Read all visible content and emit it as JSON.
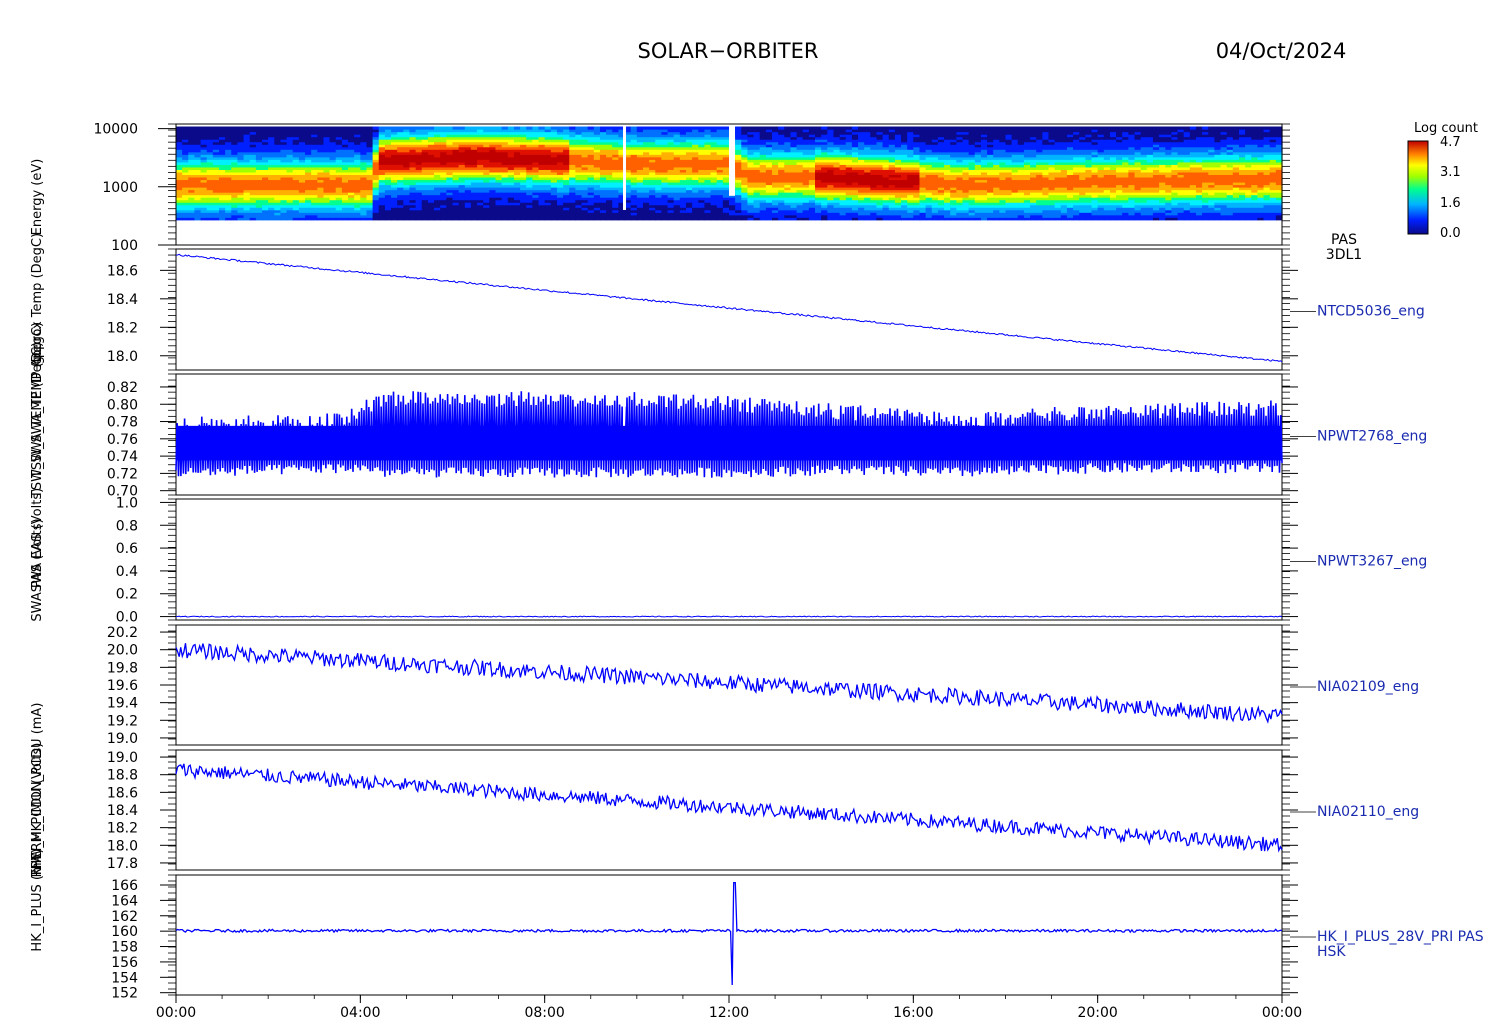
{
  "header": {
    "title": "SOLAR−ORBITER",
    "date": "04/Oct/2024"
  },
  "colorbar": {
    "title": "Log count",
    "ticks": [
      "4.7",
      "3.1",
      "1.6",
      "0.0"
    ]
  },
  "left_labels": [
    "Energy (eV)",
    "Approx Temp (DegC)",
    "TSW_SWA_TEMP (DegC)",
    "TSW_SWA_TEMP (DegC)",
    "SWA EAS (Volts)",
    "SWA PAS (Volts)",
    "RPW_HK_IMON_PCDU (mA)",
    "THERM_PCDU (Volts)",
    "HK_I_PLUS (mA)"
  ],
  "colors": {
    "trace": "#0000ff",
    "label": "#1a2bb0",
    "axis": "#000000"
  },
  "chart_data": [
    {
      "type": "heatmap",
      "panel_label": [
        "PAS",
        "3DL1"
      ],
      "ylabel": "Energy (eV)",
      "yscale": "log",
      "ylim": [
        100,
        12000
      ],
      "y_ticks": [
        "10000",
        "1000",
        "100"
      ],
      "z_label": "Log count",
      "zlim": [
        0.0,
        4.7
      ],
      "peak_energy_eV": [
        [
          0,
          1100
        ],
        [
          4.25,
          1100
        ],
        [
          4.4,
          2800
        ],
        [
          6.5,
          3300
        ],
        [
          8.0,
          3000
        ],
        [
          10.0,
          2500
        ],
        [
          12.0,
          2500
        ],
        [
          12.4,
          1500
        ],
        [
          14.0,
          1500
        ],
        [
          15.5,
          1300
        ],
        [
          17.0,
          1100
        ],
        [
          24.0,
          1400
        ]
      ]
    },
    {
      "type": "line",
      "series_label": "NTCD5036_eng",
      "ylim": [
        17.9,
        18.75
      ],
      "y_ticks": [
        "18.6",
        "18.4",
        "18.2",
        "18.0"
      ],
      "start": 18.71,
      "end": 17.96,
      "noise": 0.006
    },
    {
      "type": "line",
      "series_label": "NPWT2768_eng",
      "ylim": [
        0.695,
        0.835
      ],
      "y_ticks": [
        "0.82",
        "0.80",
        "0.78",
        "0.76",
        "0.74",
        "0.72",
        "0.70"
      ],
      "center": 0.755,
      "envelope": [
        [
          0,
          0.715,
          0.785
        ],
        [
          3.5,
          0.72,
          0.79
        ],
        [
          4.3,
          0.72,
          0.81
        ],
        [
          4.5,
          0.715,
          0.815
        ],
        [
          10.0,
          0.715,
          0.815
        ],
        [
          12.0,
          0.715,
          0.81
        ],
        [
          14.5,
          0.718,
          0.8
        ],
        [
          17.0,
          0.715,
          0.79
        ],
        [
          20.0,
          0.72,
          0.8
        ],
        [
          24.0,
          0.72,
          0.805
        ]
      ]
    },
    {
      "type": "line",
      "series_label": "NPWT3267_eng",
      "ylim": [
        -0.03,
        1.03
      ],
      "y_ticks": [
        "1.0",
        "0.8",
        "0.6",
        "0.4",
        "0.2",
        "0.0"
      ],
      "center": 0.0,
      "noise": 0.004
    },
    {
      "type": "line",
      "series_label": "NIA02109_eng",
      "ylim": [
        18.92,
        20.28
      ],
      "y_ticks": [
        "20.2",
        "20.0",
        "19.8",
        "19.6",
        "19.4",
        "19.2",
        "19.0"
      ],
      "start": 20.0,
      "end": 19.25,
      "noise": 0.09
    },
    {
      "type": "line",
      "series_label": "NIA02110_eng",
      "ylim": [
        17.72,
        19.08
      ],
      "y_ticks": [
        "19.0",
        "18.8",
        "18.6",
        "18.4",
        "18.2",
        "18.0",
        "17.8"
      ],
      "start": 18.86,
      "end": 18.0,
      "noise": 0.08
    },
    {
      "type": "line",
      "series_label": [
        "HK_I_PLUS_28V_PRI PAS",
        "HSK"
      ],
      "ylim": [
        151.7,
        167.3
      ],
      "y_ticks": [
        "166",
        "164",
        "162",
        "160",
        "158",
        "156",
        "154",
        "152"
      ],
      "center": 160.05,
      "noise": 0.18,
      "spike": {
        "hour": 12.1,
        "low": 153.0,
        "high": 166.3
      }
    }
  ],
  "x_axis": {
    "range_hours": [
      0,
      24
    ],
    "ticks": [
      "00:00",
      "04:00",
      "08:00",
      "12:00",
      "16:00",
      "20:00",
      "00:00"
    ]
  }
}
